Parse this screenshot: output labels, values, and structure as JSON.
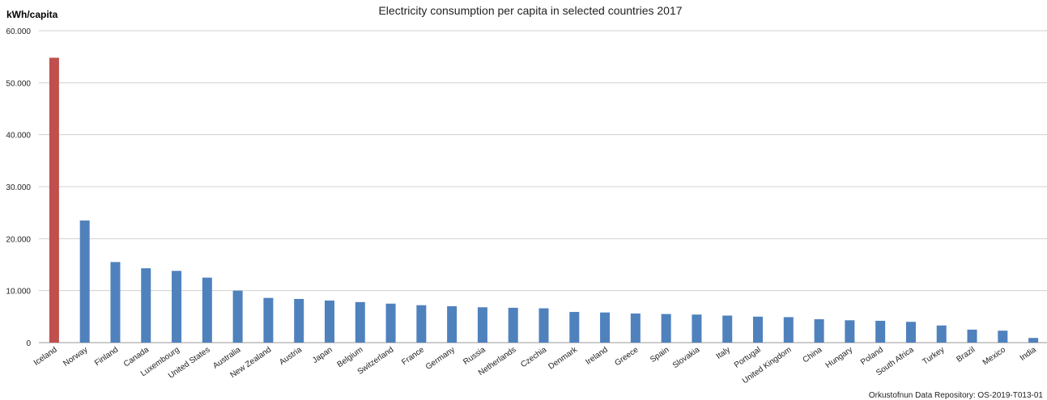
{
  "chart_data": {
    "type": "bar",
    "title": "Electricity consumption per capita in selected countries 2017",
    "ylabel": "kWh/capita",
    "xlabel": "",
    "ylim": [
      0,
      60000
    ],
    "yticks": [
      "0",
      "10.000",
      "20.000",
      "30.000",
      "40.000",
      "50.000",
      "60.000"
    ],
    "grid": true,
    "categories": [
      "Iceland",
      "Norway",
      "Finland",
      "Canada",
      "Luxembourg",
      "United States",
      "Australia",
      "New Zealand",
      "Austria",
      "Japan",
      "Belgium",
      "Switzerland",
      "France",
      "Germany",
      "Russia",
      "Netherlands",
      "Czechia",
      "Denmark",
      "Ireland",
      "Greece",
      "Spain",
      "Slovakia",
      "Italy",
      "Portugal",
      "United Kingdom",
      "China",
      "Hungary",
      "Poland",
      "South Africa",
      "Turkey",
      "Brazil",
      "Mexico",
      "India"
    ],
    "values": [
      54800,
      23500,
      15500,
      14300,
      13800,
      12500,
      10000,
      8600,
      8400,
      8100,
      7800,
      7500,
      7200,
      7000,
      6800,
      6700,
      6600,
      5900,
      5800,
      5600,
      5500,
      5400,
      5200,
      5000,
      4900,
      4500,
      4300,
      4200,
      4000,
      3300,
      2500,
      2300,
      900
    ],
    "colors": {
      "default": "#4f81bd",
      "highlight": "#c0504d",
      "highlight_category": "Iceland"
    }
  },
  "source": "Orkustofnun Data Repository: OS-2019-T013-01"
}
